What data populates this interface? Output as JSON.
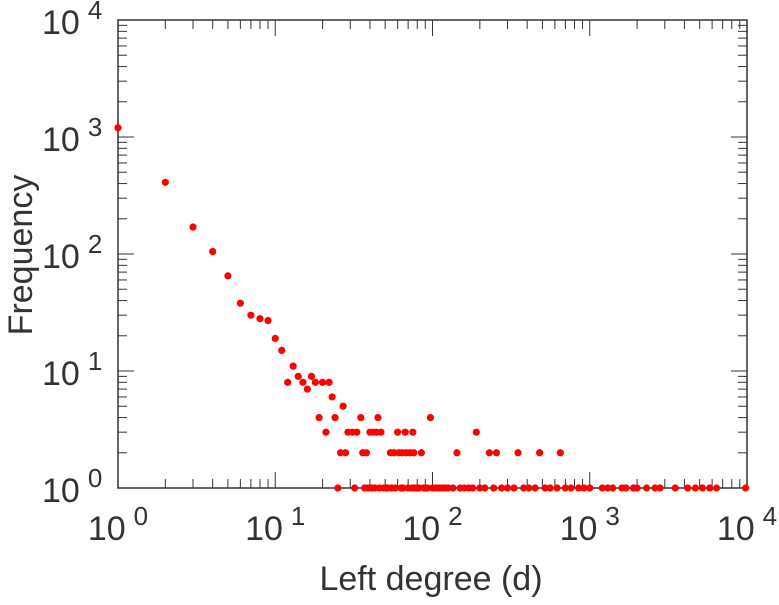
{
  "chart_data": {
    "type": "scatter",
    "title": "",
    "xlabel": "Left degree (d)",
    "ylabel": "Frequency",
    "xscale": "log",
    "yscale": "log",
    "xlim": [
      1,
      10000
    ],
    "ylim": [
      1,
      10000
    ],
    "grid": false,
    "x_ticks": [
      {
        "base": "10",
        "exp": "0"
      },
      {
        "base": "10",
        "exp": "1"
      },
      {
        "base": "10",
        "exp": "2"
      },
      {
        "base": "10",
        "exp": "3"
      },
      {
        "base": "10",
        "exp": "4"
      }
    ],
    "y_ticks": [
      {
        "base": "10",
        "exp": "0"
      },
      {
        "base": "10",
        "exp": "1"
      },
      {
        "base": "10",
        "exp": "2"
      },
      {
        "base": "10",
        "exp": "3"
      },
      {
        "base": "10",
        "exp": "4"
      }
    ],
    "marker_color": "#ff0000",
    "axis_color": "#333333",
    "points": [
      [
        1,
        1200
      ],
      [
        2,
        410
      ],
      [
        3,
        170
      ],
      [
        4,
        105
      ],
      [
        5,
        65
      ],
      [
        6,
        38
      ],
      [
        7,
        30
      ],
      [
        8,
        28
      ],
      [
        9,
        27
      ],
      [
        10,
        19
      ],
      [
        11,
        15
      ],
      [
        12,
        8
      ],
      [
        13,
        11
      ],
      [
        14,
        9
      ],
      [
        15,
        8
      ],
      [
        16,
        7
      ],
      [
        17,
        9
      ],
      [
        18,
        8
      ],
      [
        19,
        4
      ],
      [
        20,
        8
      ],
      [
        21,
        3
      ],
      [
        22,
        8
      ],
      [
        23,
        6
      ],
      [
        24,
        4
      ],
      [
        25,
        1
      ],
      [
        26,
        2
      ],
      [
        27,
        5
      ],
      [
        28,
        2
      ],
      [
        29,
        3
      ],
      [
        31,
        3
      ],
      [
        32,
        1
      ],
      [
        33,
        3
      ],
      [
        35,
        4
      ],
      [
        36,
        2
      ],
      [
        37,
        1
      ],
      [
        38,
        2
      ],
      [
        39,
        1
      ],
      [
        40,
        3
      ],
      [
        41,
        1
      ],
      [
        42,
        3
      ],
      [
        43,
        1
      ],
      [
        44,
        3
      ],
      [
        45,
        4
      ],
      [
        46,
        1
      ],
      [
        47,
        3
      ],
      [
        49,
        1
      ],
      [
        51,
        1
      ],
      [
        52,
        1
      ],
      [
        54,
        2
      ],
      [
        55,
        1
      ],
      [
        57,
        2
      ],
      [
        58,
        1
      ],
      [
        60,
        3
      ],
      [
        61,
        2
      ],
      [
        63,
        1
      ],
      [
        64,
        2
      ],
      [
        65,
        1
      ],
      [
        67,
        3
      ],
      [
        68,
        2
      ],
      [
        70,
        1
      ],
      [
        72,
        2
      ],
      [
        74,
        1
      ],
      [
        75,
        3
      ],
      [
        76,
        2
      ],
      [
        77,
        1
      ],
      [
        79,
        1
      ],
      [
        82,
        1
      ],
      [
        85,
        2
      ],
      [
        88,
        1
      ],
      [
        90,
        1
      ],
      [
        93,
        1
      ],
      [
        97,
        4
      ],
      [
        100,
        1
      ],
      [
        105,
        1
      ],
      [
        110,
        1
      ],
      [
        115,
        1
      ],
      [
        120,
        1
      ],
      [
        126,
        1
      ],
      [
        135,
        1
      ],
      [
        143,
        2
      ],
      [
        150,
        1
      ],
      [
        160,
        1
      ],
      [
        170,
        1
      ],
      [
        180,
        1
      ],
      [
        190,
        3
      ],
      [
        200,
        1
      ],
      [
        215,
        1
      ],
      [
        230,
        2
      ],
      [
        245,
        1
      ],
      [
        255,
        2
      ],
      [
        275,
        1
      ],
      [
        300,
        1
      ],
      [
        330,
        1
      ],
      [
        350,
        2
      ],
      [
        380,
        1
      ],
      [
        410,
        1
      ],
      [
        450,
        1
      ],
      [
        480,
        2
      ],
      [
        520,
        1
      ],
      [
        560,
        1
      ],
      [
        620,
        1
      ],
      [
        650,
        2
      ],
      [
        700,
        1
      ],
      [
        760,
        1
      ],
      [
        850,
        1
      ],
      [
        920,
        1
      ],
      [
        1000,
        1
      ],
      [
        1200,
        1
      ],
      [
        1300,
        1
      ],
      [
        1400,
        1
      ],
      [
        1600,
        1
      ],
      [
        1700,
        1
      ],
      [
        1900,
        1
      ],
      [
        2000,
        1
      ],
      [
        2300,
        1
      ],
      [
        2600,
        1
      ],
      [
        2800,
        1
      ],
      [
        3500,
        1
      ],
      [
        4200,
        1
      ],
      [
        4700,
        1
      ],
      [
        5200,
        1
      ],
      [
        5800,
        1
      ],
      [
        6400,
        1
      ],
      [
        9800,
        1
      ]
    ]
  }
}
